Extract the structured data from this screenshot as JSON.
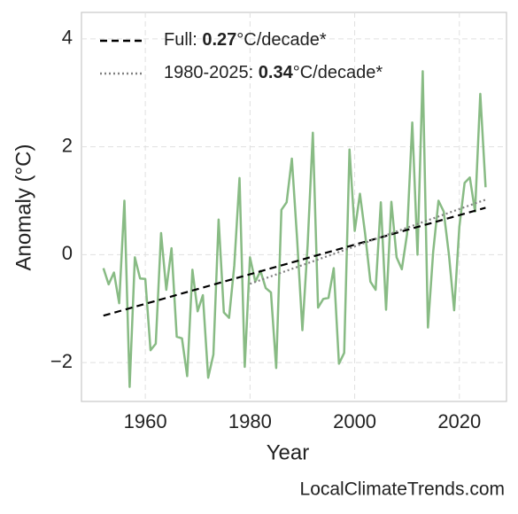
{
  "chart_data": {
    "type": "line",
    "xlabel": "Year",
    "ylabel": "Anomaly (°C)",
    "source": "LocalClimateTrends.com",
    "xlim": [
      1947.8,
      2029.0
    ],
    "xticks": [
      1960,
      1980,
      2000,
      2020
    ],
    "ylim": [
      -2.72,
      4.49
    ],
    "yticks": [
      {
        "value": -2,
        "label": "−2"
      },
      0,
      2,
      4
    ],
    "grid": true,
    "legend": "upper left",
    "series": [
      {
        "color": "#88bb84",
        "x": [
          1952,
          1953,
          1954,
          1955,
          1956,
          1957,
          1958,
          1959,
          1960,
          1961,
          1962,
          1963,
          1964,
          1965,
          1966,
          1967,
          1968,
          1969,
          1970,
          1971,
          1972,
          1973,
          1974,
          1975,
          1976,
          1977,
          1978,
          1979,
          1980,
          1981,
          1982,
          1983,
          1984,
          1985,
          1986,
          1987,
          1988,
          1989,
          1990,
          1991,
          1992,
          1993,
          1994,
          1995,
          1996,
          1997,
          1998,
          1999,
          2000,
          2001,
          2002,
          2003,
          2004,
          2005,
          2006,
          2007,
          2008,
          2009,
          2010,
          2011,
          2012,
          2013,
          2014,
          2015,
          2016,
          2017,
          2018,
          2019,
          2020,
          2021,
          2022,
          2023,
          2024,
          2025
        ],
        "values": [
          -0.25,
          -0.55,
          -0.33,
          -0.9,
          1.0,
          -2.45,
          -0.05,
          -0.44,
          -0.45,
          -1.77,
          -1.65,
          0.4,
          -0.65,
          0.12,
          -1.52,
          -1.55,
          -2.25,
          -0.28,
          -1.05,
          -0.75,
          -2.28,
          -1.85,
          0.65,
          -1.07,
          -1.17,
          -0.2,
          1.42,
          -2.08,
          -0.05,
          -0.5,
          -0.3,
          -0.62,
          -0.7,
          -2.1,
          0.83,
          0.97,
          1.78,
          0.3,
          -1.4,
          0.17,
          2.26,
          -0.98,
          -0.82,
          -0.8,
          -0.25,
          -2.02,
          -1.82,
          1.95,
          0.44,
          1.13,
          0.38,
          -0.5,
          -0.65,
          0.97,
          -1.02,
          0.98,
          -0.05,
          -0.27,
          0.38,
          2.45,
          0.0,
          3.4,
          -1.35,
          0.05,
          1.0,
          0.8,
          0.0,
          -1.03,
          0.52,
          1.33,
          1.43,
          0.8,
          2.98,
          1.25
        ]
      }
    ],
    "trends": [
      {
        "label": "Full:",
        "slope": 0.27,
        "unit": "°C/decade*",
        "color": "#000000",
        "dash": "8 5",
        "x": [
          1952,
          2025
        ],
        "values": [
          -1.13,
          0.87
        ]
      },
      {
        "label": "1980-2025:",
        "slope": 0.34,
        "unit": "°C/decade*",
        "color": "#808080",
        "dash": "2 3",
        "x": [
          1980,
          2025
        ],
        "values": [
          -0.54,
          1.02
        ]
      }
    ]
  }
}
